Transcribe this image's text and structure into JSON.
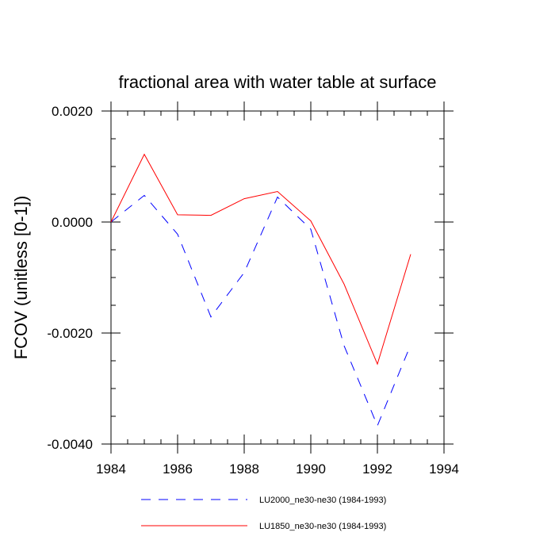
{
  "chart_data": {
    "type": "line",
    "title": "fractional area with water table at surface",
    "xlabel": "",
    "ylabel": "FCOV  (unitless [0-1])",
    "xlim": [
      1984,
      1994
    ],
    "ylim": [
      -0.004,
      0.002
    ],
    "x_ticks": [
      1984,
      1986,
      1988,
      1990,
      1992,
      1994
    ],
    "x_tick_labels": [
      "1984",
      "1986",
      "1988",
      "1990",
      "1992",
      "1994"
    ],
    "y_ticks": [
      -0.004,
      -0.002,
      0.0,
      0.002
    ],
    "y_tick_labels": [
      "-0.0040",
      "-0.0020",
      "0.0000",
      "0.0020"
    ],
    "x_minor_step": 0.5,
    "y_minor_step": 0.0005,
    "grid": false,
    "legend_position": "bottom",
    "x": [
      1984,
      1985,
      1986,
      1987,
      1988,
      1989,
      1990,
      1991,
      1992,
      1993
    ],
    "series": [
      {
        "name": "LU2000_ne30-ne30 (1984-1993)",
        "color": "#0000ff",
        "line_style": "dashed",
        "values": [
          0.0,
          0.00048,
          -0.00022,
          -0.00171,
          -0.00091,
          0.00045,
          -0.00013,
          -0.00223,
          -0.00367,
          -0.00221
        ]
      },
      {
        "name": "LU1850_ne30-ne30 (1984-1993)",
        "color": "#ff0000",
        "line_style": "solid",
        "values": [
          0.0,
          0.00122,
          0.00013,
          0.00012,
          0.00042,
          0.00055,
          2e-05,
          -0.00112,
          -0.00256,
          -0.00058
        ]
      }
    ]
  }
}
